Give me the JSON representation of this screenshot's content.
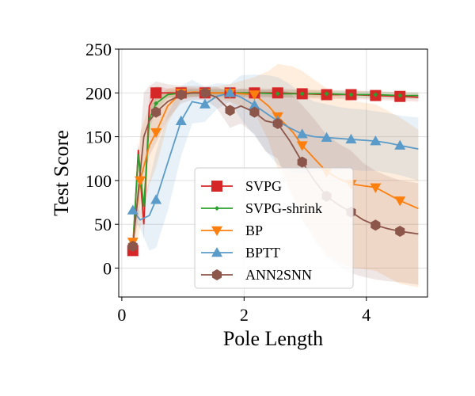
{
  "chart_data": {
    "type": "line",
    "title": "",
    "xlabel": "Pole Length",
    "ylabel": "Test Score",
    "xlim": [
      -0.05,
      5.0
    ],
    "ylim": [
      -33,
      250
    ],
    "xticks": [
      0,
      2,
      4
    ],
    "yticks": [
      0,
      50,
      100,
      150,
      200,
      250
    ],
    "grid": true,
    "legend_position": "lower-center",
    "series": [
      {
        "name": "SVPG",
        "color": "#d62728",
        "marker": "square",
        "x": [
          0.18,
          0.27,
          0.36,
          0.45,
          0.56,
          0.75,
          0.97,
          1.36,
          1.77,
          2.17,
          2.55,
          2.95,
          3.35,
          3.75,
          4.15,
          4.55,
          4.85
        ],
        "y": [
          20,
          135,
          50,
          185,
          200,
          200,
          200,
          200,
          200,
          200,
          200,
          199,
          198,
          198,
          197,
          196,
          195
        ],
        "band": [
          8,
          10,
          18,
          12,
          8,
          5,
          5,
          5,
          5,
          5,
          5,
          5,
          5,
          5,
          5,
          5,
          5
        ],
        "markers": [
          0,
          4,
          6,
          7,
          8,
          9,
          10,
          11,
          12,
          13,
          14,
          15
        ]
      },
      {
        "name": "SVPG-shrink",
        "color": "#2ca02c",
        "marker": "diamond",
        "x": [
          0.18,
          0.27,
          0.36,
          0.45,
          0.56,
          0.75,
          0.97,
          1.36,
          1.77,
          2.17,
          2.55,
          2.95,
          3.35,
          3.75,
          4.15,
          4.55,
          4.85
        ],
        "y": [
          25,
          130,
          70,
          170,
          188,
          198,
          200,
          200,
          200,
          200,
          199,
          199,
          199,
          198,
          198,
          197,
          197
        ],
        "band": [
          8,
          10,
          15,
          12,
          8,
          4,
          4,
          4,
          4,
          4,
          4,
          4,
          4,
          4,
          4,
          4,
          4
        ],
        "markers": [
          0,
          4,
          6,
          7,
          8,
          9,
          10,
          11,
          12,
          13,
          14,
          15
        ]
      },
      {
        "name": "BP",
        "color": "#ff7f0e",
        "marker": "triangle-down",
        "x": [
          0.18,
          0.3,
          0.45,
          0.56,
          0.75,
          0.97,
          1.2,
          1.36,
          1.77,
          2.17,
          2.4,
          2.55,
          2.8,
          2.95,
          3.15,
          3.35,
          3.55,
          3.75,
          4.15,
          4.55,
          4.85
        ],
        "y": [
          30,
          100,
          140,
          155,
          185,
          200,
          201,
          200,
          200,
          198,
          185,
          173,
          155,
          140,
          125,
          110,
          102,
          96,
          92,
          77,
          68
        ],
        "band": [
          15,
          55,
          45,
          40,
          20,
          8,
          5,
          5,
          10,
          20,
          40,
          60,
          75,
          85,
          90,
          95,
          95,
          95,
          95,
          95,
          90
        ],
        "markers": [
          0,
          1,
          3,
          5,
          7,
          8,
          9,
          11,
          13,
          15,
          17,
          18,
          19
        ]
      },
      {
        "name": "BPTT",
        "color": "#5a9bc9",
        "marker": "triangle-up",
        "x": [
          0.18,
          0.3,
          0.45,
          0.56,
          0.75,
          0.97,
          1.15,
          1.36,
          1.55,
          1.77,
          1.95,
          2.17,
          2.4,
          2.55,
          2.75,
          2.95,
          3.15,
          3.35,
          3.55,
          3.75,
          3.95,
          4.15,
          4.35,
          4.55,
          4.85
        ],
        "y": [
          66,
          55,
          60,
          78,
          120,
          168,
          190,
          187,
          196,
          200,
          195,
          186,
          175,
          168,
          160,
          153,
          150,
          149,
          148,
          147,
          146,
          145,
          143,
          140,
          136
        ],
        "band": [
          8,
          10,
          40,
          55,
          55,
          40,
          25,
          20,
          15,
          10,
          25,
          35,
          45,
          50,
          50,
          45,
          40,
          38,
          36,
          35,
          35,
          34,
          34,
          34,
          36
        ],
        "markers": [
          0,
          3,
          5,
          7,
          9,
          11,
          13,
          15,
          17,
          19,
          21,
          23
        ]
      },
      {
        "name": "ANN2SNN",
        "color": "#8c564b",
        "marker": "hexagon",
        "x": [
          0.18,
          0.36,
          0.45,
          0.56,
          0.75,
          0.97,
          1.15,
          1.36,
          1.55,
          1.77,
          1.95,
          2.17,
          2.35,
          2.55,
          2.75,
          2.95,
          3.15,
          3.35,
          3.55,
          3.75,
          3.95,
          4.15,
          4.35,
          4.55,
          4.85
        ],
        "y": [
          25,
          150,
          168,
          178,
          190,
          198,
          200,
          200,
          195,
          180,
          185,
          178,
          168,
          165,
          145,
          121,
          100,
          82,
          72,
          64,
          55,
          49,
          45,
          42,
          39
        ],
        "band": [
          10,
          50,
          40,
          35,
          20,
          10,
          8,
          8,
          12,
          20,
          20,
          25,
          35,
          40,
          55,
          65,
          70,
          70,
          70,
          70,
          65,
          62,
          60,
          58,
          58
        ],
        "markers": [
          0,
          3,
          5,
          7,
          9,
          11,
          13,
          15,
          17,
          19,
          21,
          23
        ]
      }
    ]
  }
}
